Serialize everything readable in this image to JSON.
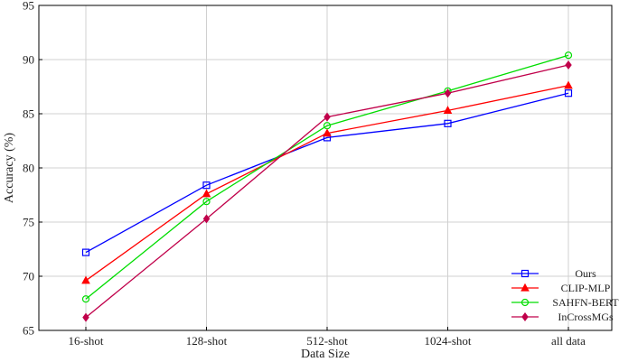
{
  "chart_data": {
    "type": "line",
    "title": "",
    "xlabel": "Data Size",
    "ylabel": "Accuracy (%)",
    "categories": [
      "16-shot",
      "128-shot",
      "512-shot",
      "1024-shot",
      "all data"
    ],
    "ylim": [
      65,
      95
    ],
    "yticks": [
      65,
      70,
      75,
      80,
      85,
      90,
      95
    ],
    "grid": true,
    "legend_position": "bottom-right",
    "series": [
      {
        "name": "Ours",
        "color": "#0000ff",
        "marker": "square",
        "values": [
          72.2,
          78.4,
          82.8,
          84.1,
          86.9
        ]
      },
      {
        "name": "CLIP-MLP",
        "color": "#ff0000",
        "marker": "triangle",
        "values": [
          69.6,
          77.6,
          83.2,
          85.3,
          87.6
        ]
      },
      {
        "name": "SAHFN-BERT",
        "color": "#00dd00",
        "marker": "circle",
        "values": [
          67.9,
          76.9,
          83.9,
          87.1,
          90.4
        ]
      },
      {
        "name": "InCrossMGs",
        "color": "#c0004a",
        "marker": "diamond",
        "values": [
          66.2,
          75.3,
          84.7,
          86.9,
          89.5
        ]
      }
    ]
  }
}
